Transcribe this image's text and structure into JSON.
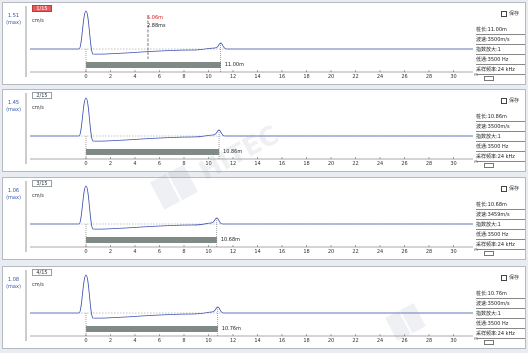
{
  "colors": {
    "accent_red": "#e55a5a",
    "gain_text": "#3355aa",
    "waveform": "#3a4fb0",
    "length_bar": "#7f8a85",
    "cursor_red": "#d02020",
    "panel_bg": "#ffffff",
    "window_bg": "#e9ecf1"
  },
  "axis": {
    "unit": "m",
    "ticks": [
      "0",
      "2",
      "4",
      "6",
      "8",
      "10",
      "12",
      "14",
      "16",
      "18",
      "20",
      "22",
      "24",
      "26",
      "28",
      "30"
    ]
  },
  "cursor": {
    "red_text": "5.06m",
    "black_text": "2.88ms"
  },
  "panels": [
    {
      "index": "1/15",
      "active": true,
      "gain_value": "1.51",
      "gain_mode": "(max)",
      "unit": "cm/s",
      "save_label": "保存",
      "length_label": "11.00m",
      "length_value": 11.0,
      "length_bar_end_m": 11.0,
      "end_marker_m": 11.0,
      "peak_height": 0.95,
      "params": {
        "pile_length": "桩长:11.00m",
        "wave_speed": "波速:3500m/s",
        "amplification": "指数放大:1",
        "lowpass": "低通:3500 Hz",
        "sampling": "采样频率:24 kHz"
      }
    },
    {
      "index": "2/15",
      "active": false,
      "gain_value": "1.45",
      "gain_mode": "(max)",
      "unit": "cm/s",
      "save_label": "保存",
      "length_label": "10.86m",
      "length_value": 10.86,
      "length_bar_end_m": 10.86,
      "end_marker_m": 10.86,
      "peak_height": 0.95,
      "params": {
        "pile_length": "桩长:10.86m",
        "wave_speed": "波速:3500m/s",
        "amplification": "指数放大:1",
        "lowpass": "低通:3500 Hz",
        "sampling": "采样频率:24 kHz"
      }
    },
    {
      "index": "3/15",
      "active": false,
      "gain_value": "1.06",
      "gain_mode": "(max)",
      "unit": "cm/s",
      "save_label": "保存",
      "length_label": "10.68m",
      "length_value": 10.68,
      "length_bar_end_m": 10.68,
      "end_marker_m": 10.68,
      "peak_height": 0.95,
      "params": {
        "pile_length": "桩长:10.68m",
        "wave_speed": "波速:3459m/s",
        "amplification": "指数放大:1",
        "lowpass": "低通:3500 Hz",
        "sampling": "采样频率:24 kHz"
      }
    },
    {
      "index": "4/15",
      "active": false,
      "gain_value": "1.08",
      "gain_mode": "(max)",
      "unit": "cm/s",
      "save_label": "保存",
      "length_label": "10.76m",
      "length_value": 10.76,
      "length_bar_end_m": 10.76,
      "end_marker_m": 10.76,
      "peak_height": 0.95,
      "params": {
        "pile_length": "桩长:10.76m",
        "wave_speed": "波速:3500m/s",
        "amplification": "指数放大:1",
        "lowpass": "低通:3500 Hz",
        "sampling": "采样频率:24 kHz"
      }
    }
  ]
}
